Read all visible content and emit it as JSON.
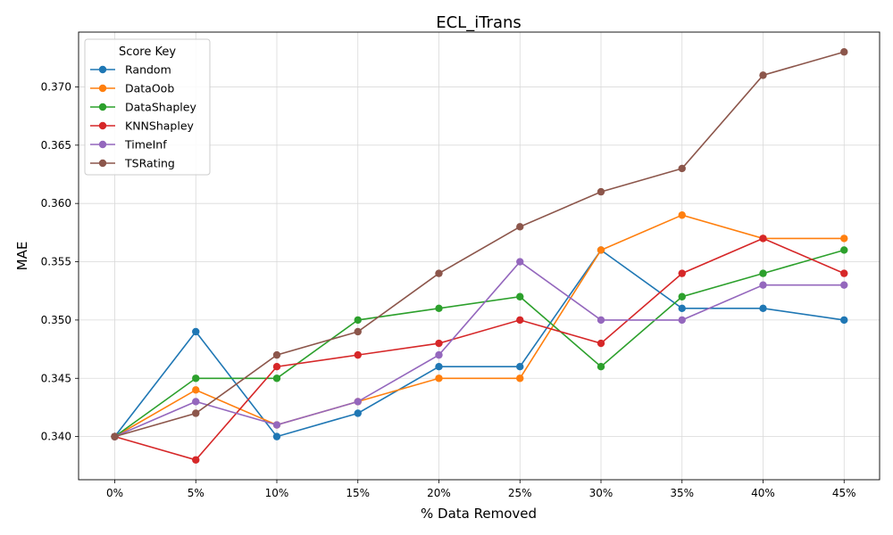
{
  "chart_data": {
    "type": "line",
    "title": "ECL_iTrans",
    "xlabel": "% Data Removed",
    "ylabel": "MAE",
    "categories": [
      "0%",
      "5%",
      "10%",
      "15%",
      "20%",
      "25%",
      "30%",
      "35%",
      "40%",
      "45%"
    ],
    "ylim": [
      0.3363,
      0.3747
    ],
    "yticks": [
      "0.340",
      "0.345",
      "0.350",
      "0.355",
      "0.360",
      "0.365",
      "0.370"
    ],
    "grid": true,
    "legend": {
      "title": "Score Key",
      "placement": "top-left"
    },
    "series": [
      {
        "name": "Random",
        "color": "#1f77b4",
        "values": [
          0.34,
          0.349,
          0.34,
          0.342,
          0.346,
          0.346,
          0.356,
          0.351,
          0.351,
          0.35
        ]
      },
      {
        "name": "DataOob",
        "color": "#ff7f0e",
        "values": [
          0.34,
          0.344,
          0.341,
          0.343,
          0.345,
          0.345,
          0.356,
          0.359,
          0.357,
          0.357
        ]
      },
      {
        "name": "DataShapley",
        "color": "#2ca02c",
        "values": [
          0.34,
          0.345,
          0.345,
          0.35,
          0.351,
          0.352,
          0.346,
          0.352,
          0.354,
          0.356
        ]
      },
      {
        "name": "KNNShapley",
        "color": "#d62728",
        "values": [
          0.34,
          0.338,
          0.346,
          0.347,
          0.348,
          0.35,
          0.348,
          0.354,
          0.357,
          0.354
        ]
      },
      {
        "name": "TimeInf",
        "color": "#9467bd",
        "values": [
          0.34,
          0.343,
          0.341,
          0.343,
          0.347,
          0.355,
          0.35,
          0.35,
          0.353,
          0.353
        ]
      },
      {
        "name": "TSRating",
        "color": "#8c564b",
        "values": [
          0.34,
          0.342,
          0.347,
          0.349,
          0.354,
          0.358,
          0.361,
          0.363,
          0.371,
          0.373
        ]
      }
    ]
  }
}
